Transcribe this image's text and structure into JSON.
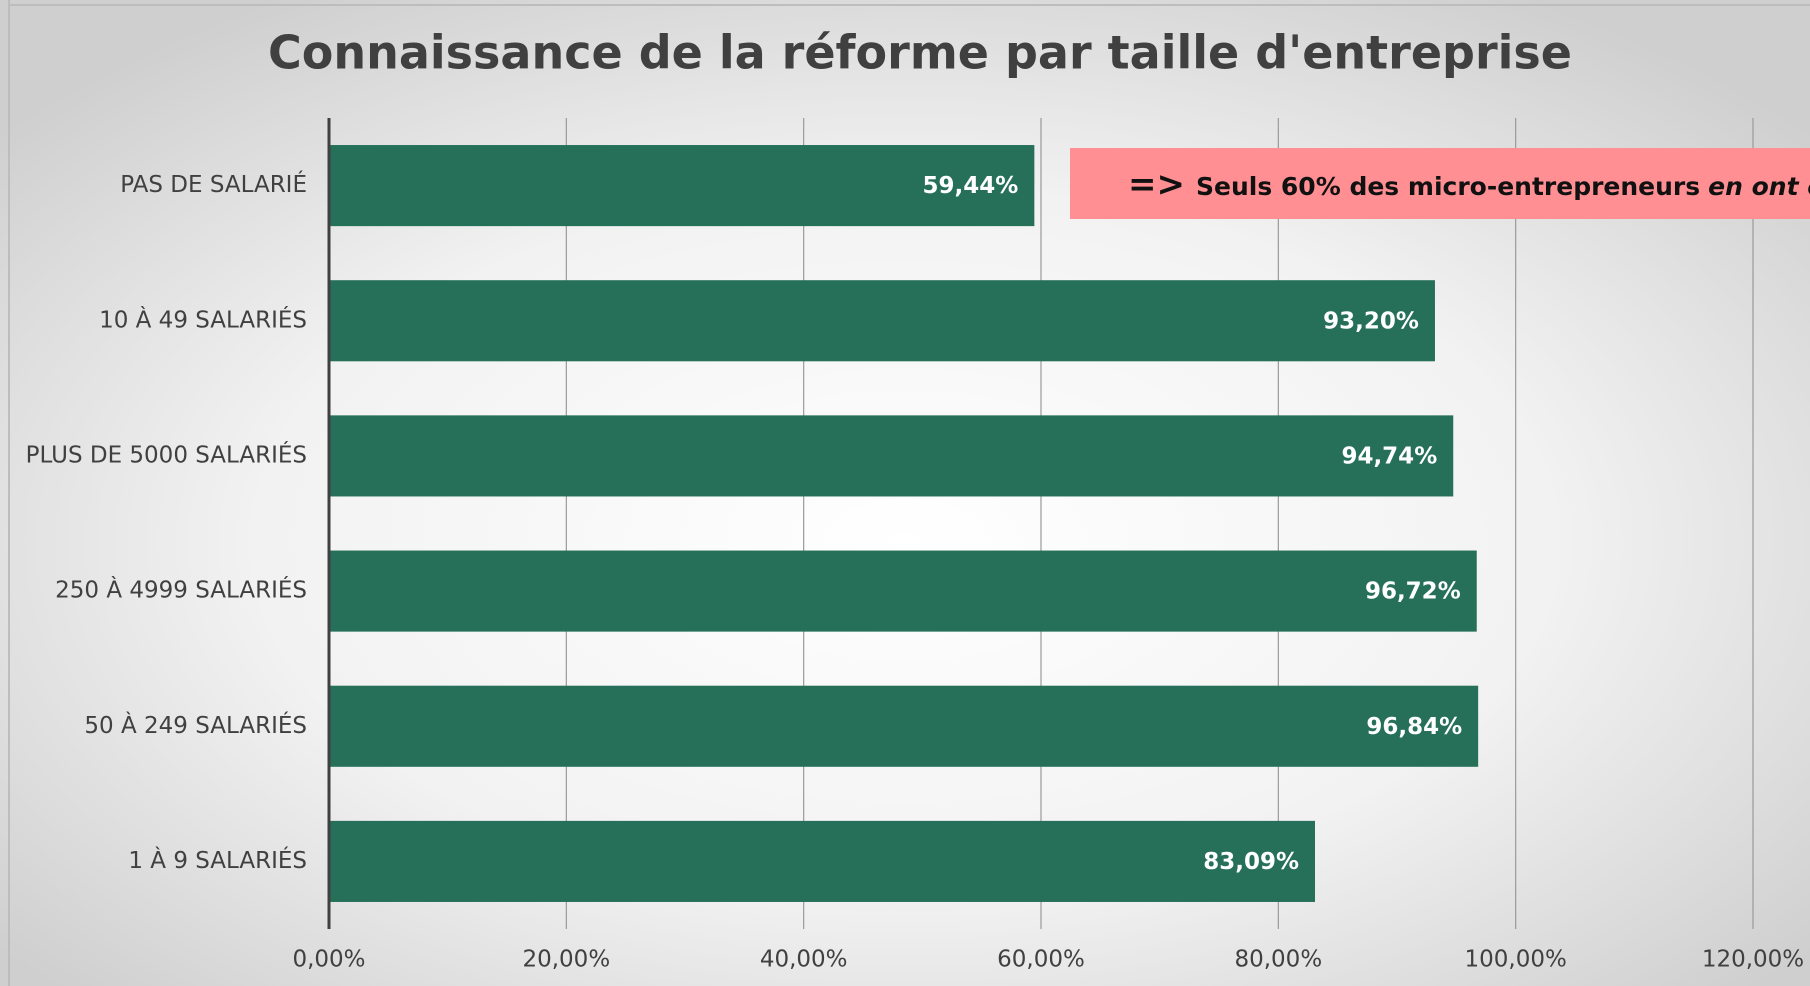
{
  "chart_data": {
    "type": "bar",
    "orientation": "horizontal",
    "title": "Connaissance de la réforme par taille d'entreprise",
    "categories": [
      "PAS DE SALARIÉ",
      "10 À 49 SALARIÉS",
      "PLUS DE 5000 SALARIÉS",
      "250 À 4999 SALARIÉS",
      "50 À 249 SALARIÉS",
      "1 À 9 SALARIÉS"
    ],
    "values": [
      59.44,
      93.2,
      94.74,
      96.72,
      96.84,
      83.09
    ],
    "value_labels": [
      "59,44%",
      "93,20%",
      "94,74%",
      "96,72%",
      "96,84%",
      "83,09%"
    ],
    "color": "#26705a",
    "xlim": [
      0,
      120
    ],
    "xticks": [
      {
        "value": 0,
        "label": "0,00%"
      },
      {
        "value": 20,
        "label": "20,00%"
      },
      {
        "value": 40,
        "label": "40,00%"
      },
      {
        "value": 60,
        "label": "60,00%"
      },
      {
        "value": 80,
        "label": "80,00%"
      },
      {
        "value": 100,
        "label": "100,00%"
      },
      {
        "value": 120,
        "label": "120,00%"
      }
    ],
    "grid": true,
    "annotation": {
      "arrow": "=>",
      "text": "Seuls 60% des micro-entrepreneurs",
      "emphasis": "en ont en",
      "color": "#ff8f93"
    }
  }
}
